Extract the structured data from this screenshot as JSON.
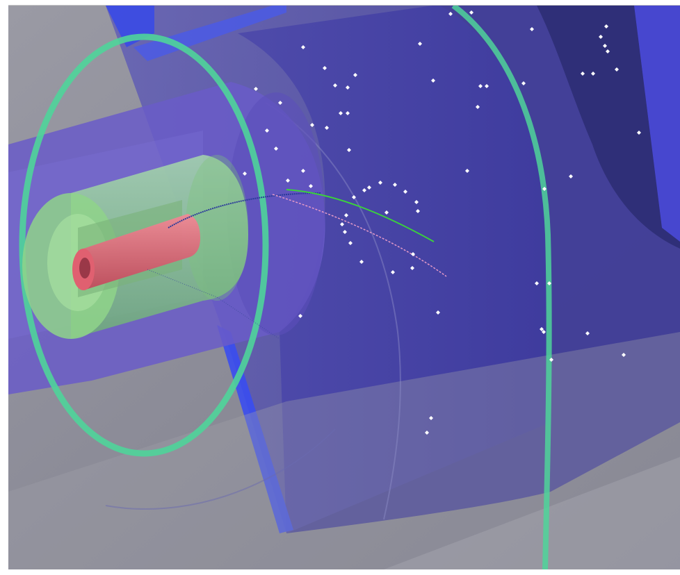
{
  "viewer": {
    "view_mode": "3D perspective",
    "detector_layers": [
      "pixel-detector",
      "silicon-strip-tracker",
      "transition-radiation-tracker",
      "electromagnetic-calorimeter",
      "hadronic-calorimeter-barrel",
      "endcap-disk"
    ],
    "colors": {
      "background": "#8a8a96",
      "pixel_detector": "#e06070",
      "inner_tracker": "#8ee08e",
      "tracker_ring": "#4fd49a",
      "barrel_volume": "#5a55b8",
      "hit_points": "#ffffff",
      "track_green": "#3bd23b",
      "track_pink": "#e59ac8",
      "track_blue": "#2a3a9a"
    }
  }
}
